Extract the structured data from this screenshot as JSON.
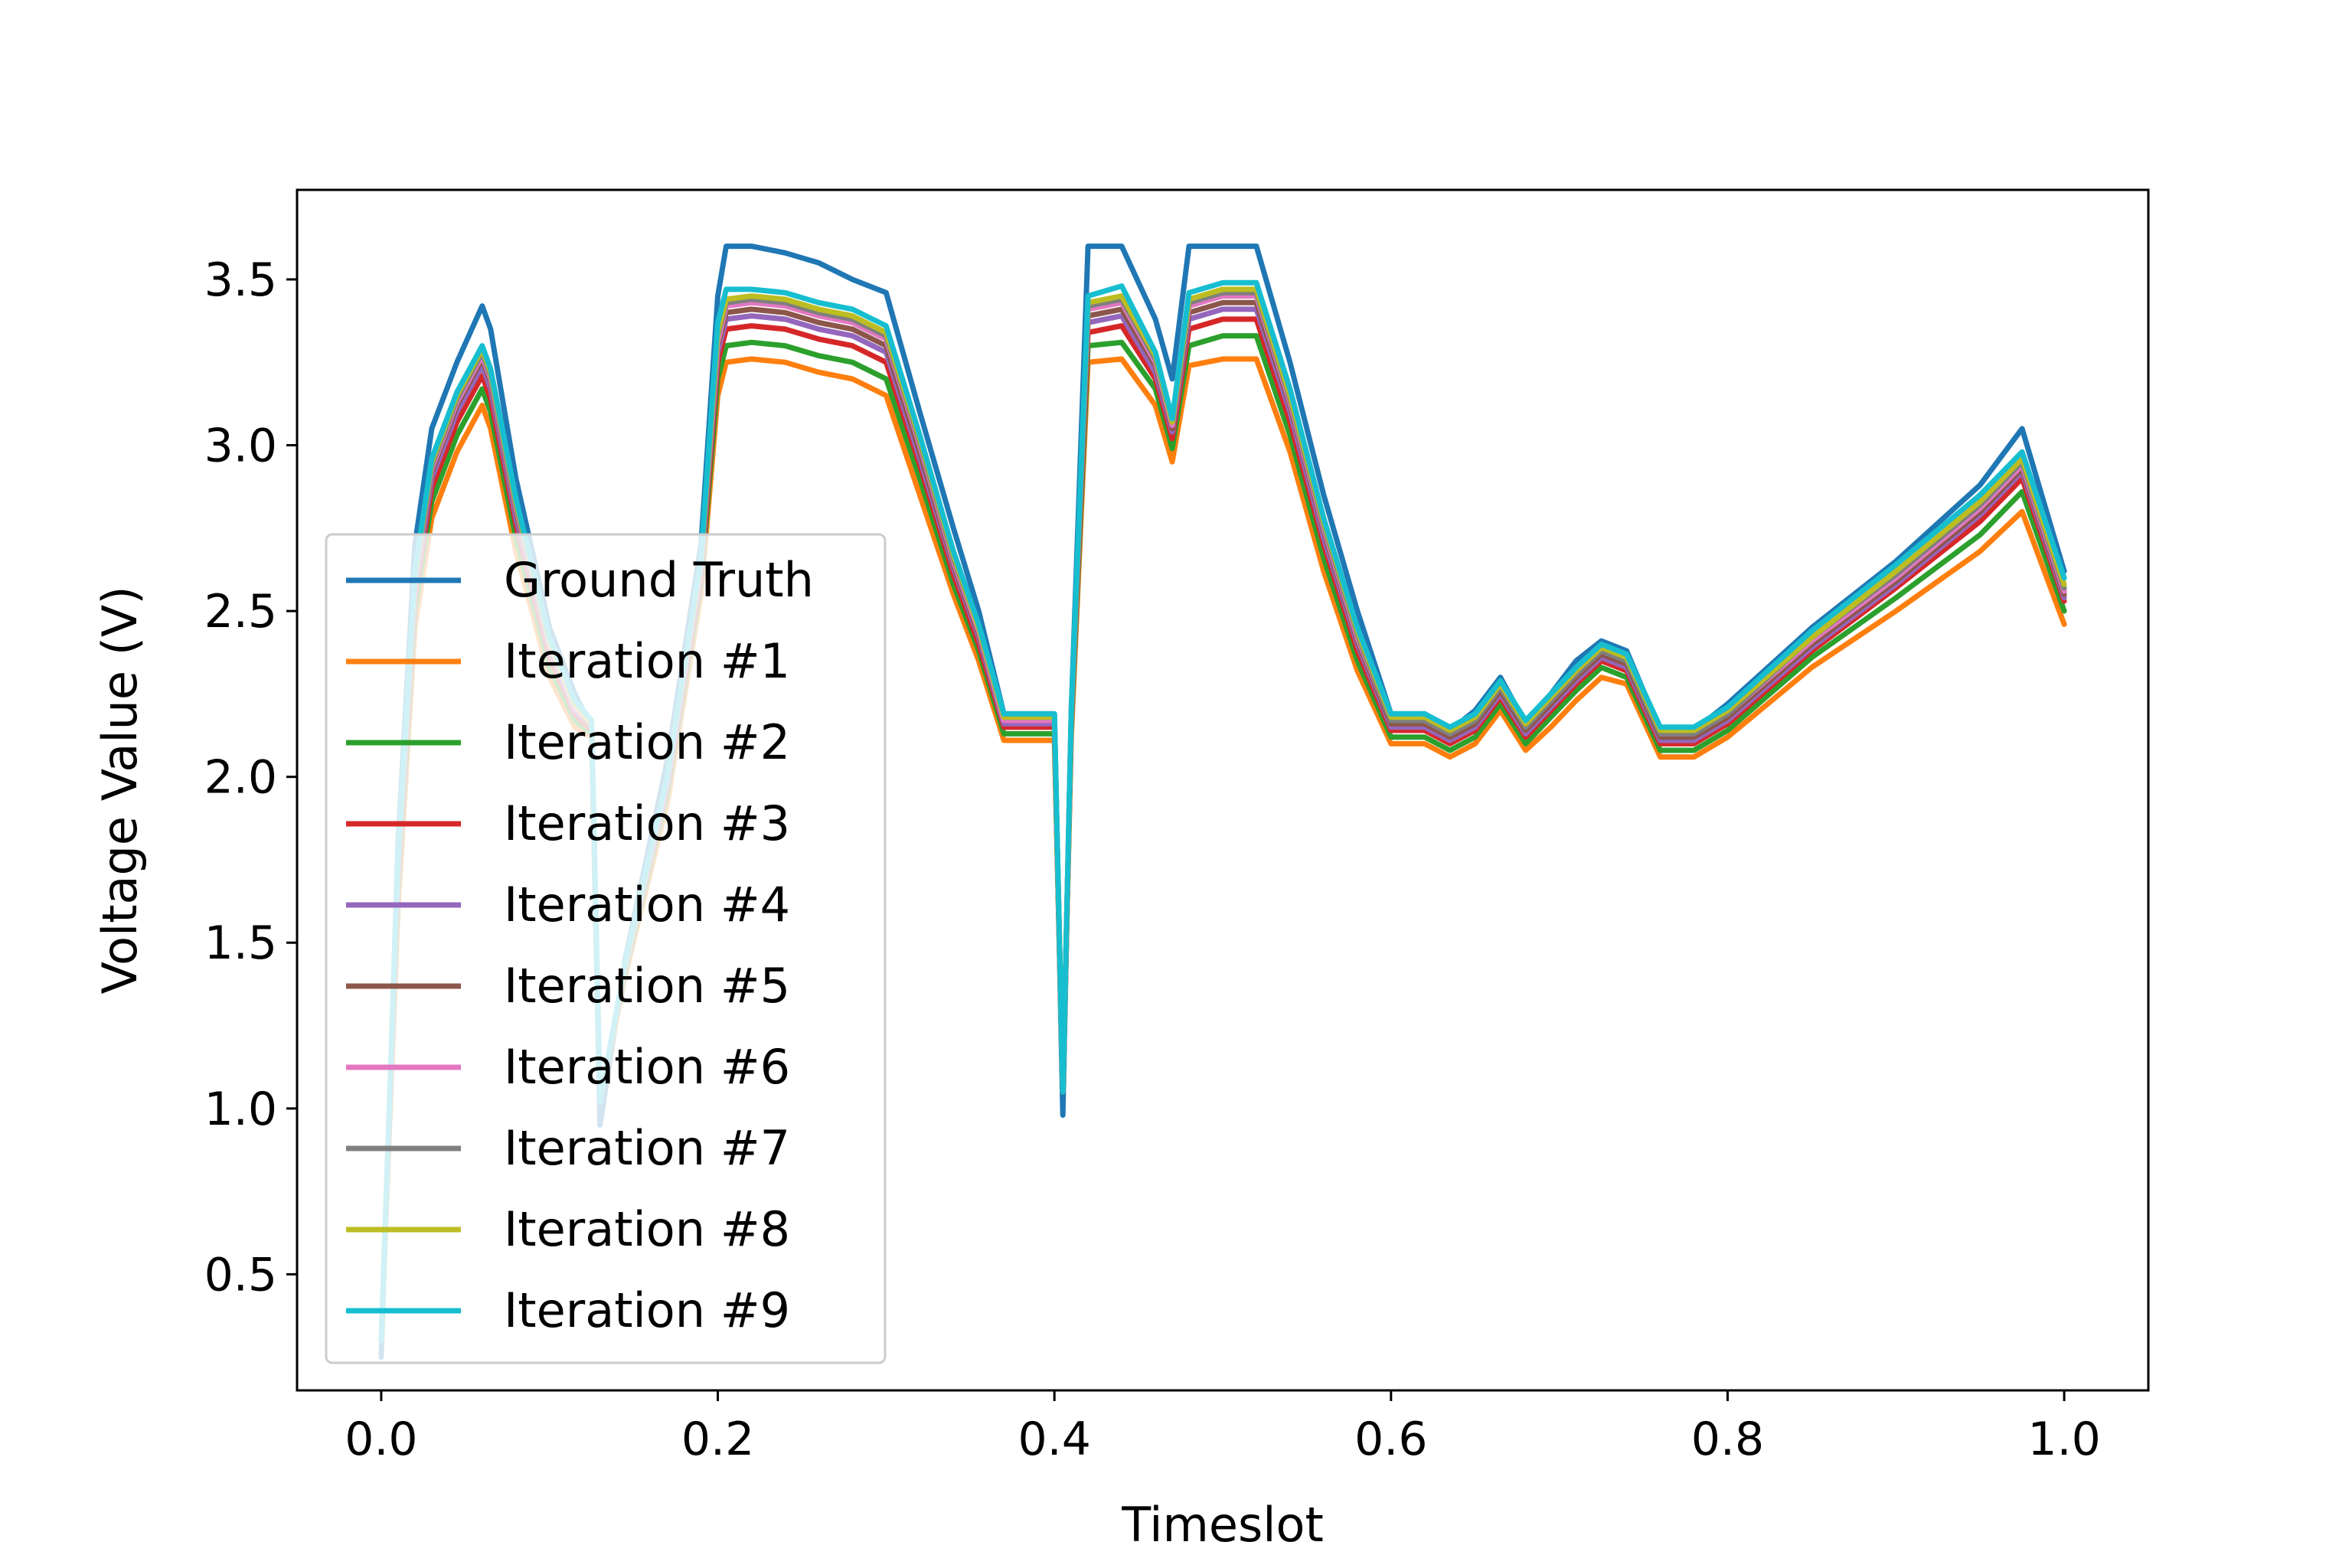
{
  "chart_data": {
    "type": "line",
    "title": "",
    "xlabel": "Timeslot",
    "ylabel": "Voltage Value (V)",
    "xlim": [
      -0.05,
      1.05
    ],
    "ylim": [
      0.15,
      3.77
    ],
    "xticks": [
      0.0,
      0.2,
      0.4,
      0.6,
      0.8,
      1.0
    ],
    "xtick_labels": [
      "0.0",
      "0.2",
      "0.4",
      "0.6",
      "0.8",
      "1.0"
    ],
    "yticks": [
      0.5,
      1.0,
      1.5,
      2.0,
      2.5,
      3.0,
      3.5
    ],
    "ytick_labels": [
      "0.5",
      "1.0",
      "1.5",
      "2.0",
      "2.5",
      "3.0",
      "3.5"
    ],
    "grid": false,
    "legend_position": "lower-left",
    "x": [
      0.0,
      0.01,
      0.02,
      0.03,
      0.045,
      0.06,
      0.065,
      0.08,
      0.1,
      0.115,
      0.125,
      0.13,
      0.145,
      0.17,
      0.19,
      0.2,
      0.205,
      0.22,
      0.24,
      0.26,
      0.28,
      0.3,
      0.32,
      0.34,
      0.355,
      0.37,
      0.4,
      0.405,
      0.41,
      0.42,
      0.44,
      0.46,
      0.47,
      0.48,
      0.5,
      0.52,
      0.54,
      0.56,
      0.58,
      0.6,
      0.62,
      0.635,
      0.65,
      0.665,
      0.68,
      0.695,
      0.71,
      0.725,
      0.74,
      0.76,
      0.78,
      0.8,
      0.85,
      0.9,
      0.95,
      0.975,
      1.0
    ],
    "series": [
      {
        "name": "Ground Truth",
        "color": "#1f77b4",
        "values": [
          0.25,
          1.8,
          2.7,
          3.05,
          3.25,
          3.42,
          3.35,
          2.9,
          2.45,
          2.25,
          2.15,
          0.95,
          1.45,
          2.05,
          2.7,
          3.45,
          3.6,
          3.6,
          3.58,
          3.55,
          3.5,
          3.46,
          3.1,
          2.75,
          2.5,
          2.19,
          2.19,
          0.98,
          2.2,
          3.6,
          3.6,
          3.38,
          3.2,
          3.6,
          3.6,
          3.6,
          3.25,
          2.85,
          2.5,
          2.19,
          2.19,
          2.14,
          2.2,
          2.3,
          2.16,
          2.25,
          2.35,
          2.41,
          2.38,
          2.14,
          2.14,
          2.22,
          2.45,
          2.65,
          2.88,
          3.05,
          2.62
        ]
      },
      {
        "name": "Iteration #1",
        "color": "#ff7f0e",
        "values": [
          0.3,
          1.6,
          2.45,
          2.78,
          2.98,
          3.12,
          3.05,
          2.68,
          2.3,
          2.15,
          2.12,
          1.02,
          1.4,
          1.92,
          2.55,
          3.15,
          3.25,
          3.26,
          3.25,
          3.22,
          3.2,
          3.15,
          2.85,
          2.55,
          2.35,
          2.11,
          2.11,
          1.05,
          2.12,
          3.25,
          3.26,
          3.12,
          2.95,
          3.24,
          3.26,
          3.26,
          2.98,
          2.62,
          2.32,
          2.1,
          2.1,
          2.06,
          2.1,
          2.2,
          2.08,
          2.15,
          2.23,
          2.3,
          2.28,
          2.06,
          2.06,
          2.12,
          2.33,
          2.5,
          2.68,
          2.8,
          2.46
        ]
      },
      {
        "name": "Iteration #2",
        "color": "#2ca02c",
        "values": [
          0.3,
          1.65,
          2.5,
          2.83,
          3.03,
          3.17,
          3.1,
          2.72,
          2.33,
          2.17,
          2.13,
          1.02,
          1.41,
          1.95,
          2.58,
          3.2,
          3.3,
          3.31,
          3.3,
          3.27,
          3.25,
          3.2,
          2.9,
          2.58,
          2.38,
          2.13,
          2.13,
          1.05,
          2.14,
          3.3,
          3.31,
          3.17,
          2.99,
          3.3,
          3.33,
          3.33,
          3.03,
          2.66,
          2.35,
          2.12,
          2.12,
          2.08,
          2.12,
          2.22,
          2.1,
          2.18,
          2.26,
          2.33,
          2.3,
          2.08,
          2.08,
          2.14,
          2.36,
          2.54,
          2.73,
          2.86,
          2.5
        ]
      },
      {
        "name": "Iteration #3",
        "color": "#d62728",
        "values": [
          0.3,
          1.68,
          2.54,
          2.87,
          3.07,
          3.21,
          3.14,
          2.76,
          2.36,
          2.19,
          2.14,
          1.02,
          1.42,
          1.97,
          2.6,
          3.25,
          3.35,
          3.36,
          3.35,
          3.32,
          3.3,
          3.25,
          2.94,
          2.61,
          2.4,
          2.15,
          2.15,
          1.05,
          2.16,
          3.34,
          3.36,
          3.2,
          3.02,
          3.35,
          3.38,
          3.38,
          3.07,
          2.7,
          2.38,
          2.14,
          2.14,
          2.1,
          2.14,
          2.24,
          2.12,
          2.2,
          2.28,
          2.35,
          2.32,
          2.1,
          2.1,
          2.16,
          2.38,
          2.57,
          2.77,
          2.9,
          2.53
        ]
      },
      {
        "name": "Iteration #4",
        "color": "#9467bd",
        "values": [
          0.3,
          1.7,
          2.56,
          2.9,
          3.1,
          3.24,
          3.17,
          2.78,
          2.38,
          2.2,
          2.15,
          1.02,
          1.42,
          1.98,
          2.62,
          3.28,
          3.38,
          3.39,
          3.38,
          3.35,
          3.33,
          3.28,
          2.96,
          2.63,
          2.42,
          2.16,
          2.16,
          1.05,
          2.17,
          3.37,
          3.39,
          3.22,
          3.04,
          3.38,
          3.41,
          3.41,
          3.1,
          2.72,
          2.4,
          2.15,
          2.15,
          2.11,
          2.15,
          2.25,
          2.13,
          2.21,
          2.29,
          2.36,
          2.33,
          2.11,
          2.11,
          2.17,
          2.39,
          2.58,
          2.79,
          2.92,
          2.54
        ]
      },
      {
        "name": "Iteration #5",
        "color": "#8c564b",
        "values": [
          0.3,
          1.72,
          2.58,
          2.92,
          3.12,
          3.26,
          3.19,
          2.8,
          2.39,
          2.21,
          2.15,
          1.02,
          1.43,
          1.99,
          2.63,
          3.3,
          3.4,
          3.41,
          3.4,
          3.37,
          3.35,
          3.3,
          2.98,
          2.64,
          2.43,
          2.17,
          2.17,
          1.05,
          2.18,
          3.39,
          3.41,
          3.24,
          3.05,
          3.4,
          3.43,
          3.43,
          3.12,
          2.74,
          2.41,
          2.16,
          2.16,
          2.12,
          2.16,
          2.26,
          2.14,
          2.22,
          2.3,
          2.37,
          2.34,
          2.12,
          2.12,
          2.18,
          2.4,
          2.59,
          2.8,
          2.93,
          2.55
        ]
      },
      {
        "name": "Iteration #6",
        "color": "#e377c2",
        "values": [
          0.3,
          1.73,
          2.59,
          2.93,
          3.13,
          3.27,
          3.2,
          2.81,
          2.4,
          2.21,
          2.16,
          1.02,
          1.43,
          1.99,
          2.64,
          3.31,
          3.42,
          3.43,
          3.42,
          3.39,
          3.37,
          3.32,
          3.0,
          2.65,
          2.44,
          2.17,
          2.17,
          1.05,
          2.18,
          3.41,
          3.43,
          3.25,
          3.06,
          3.42,
          3.45,
          3.45,
          3.13,
          2.75,
          2.42,
          2.17,
          2.17,
          2.13,
          2.17,
          2.27,
          2.15,
          2.23,
          2.31,
          2.38,
          2.35,
          2.13,
          2.13,
          2.19,
          2.41,
          2.6,
          2.81,
          2.94,
          2.56
        ]
      },
      {
        "name": "Iteration #7",
        "color": "#7f7f7f",
        "values": [
          0.3,
          1.74,
          2.6,
          2.94,
          3.14,
          3.28,
          3.21,
          2.82,
          2.41,
          2.22,
          2.16,
          1.02,
          1.43,
          2.0,
          2.65,
          3.33,
          3.43,
          3.44,
          3.43,
          3.4,
          3.38,
          3.33,
          3.01,
          2.66,
          2.45,
          2.18,
          2.18,
          1.05,
          2.19,
          3.42,
          3.44,
          3.26,
          3.07,
          3.43,
          3.46,
          3.46,
          3.14,
          2.76,
          2.43,
          2.17,
          2.17,
          2.13,
          2.17,
          2.27,
          2.15,
          2.23,
          2.31,
          2.38,
          2.35,
          2.13,
          2.13,
          2.19,
          2.42,
          2.61,
          2.82,
          2.95,
          2.57
        ]
      },
      {
        "name": "Iteration #8",
        "color": "#bcbd22",
        "values": [
          0.3,
          1.75,
          2.61,
          2.95,
          3.15,
          3.29,
          3.22,
          2.83,
          2.41,
          2.22,
          2.16,
          1.02,
          1.43,
          2.0,
          2.65,
          3.34,
          3.44,
          3.45,
          3.44,
          3.41,
          3.39,
          3.34,
          3.02,
          2.67,
          2.45,
          2.18,
          2.18,
          1.05,
          2.19,
          3.43,
          3.45,
          3.27,
          3.07,
          3.44,
          3.47,
          3.47,
          3.15,
          2.77,
          2.44,
          2.18,
          2.18,
          2.14,
          2.18,
          2.28,
          2.16,
          2.24,
          2.32,
          2.39,
          2.36,
          2.14,
          2.14,
          2.2,
          2.42,
          2.62,
          2.83,
          2.96,
          2.58
        ]
      },
      {
        "name": "Iteration #9",
        "color": "#17becf",
        "values": [
          0.3,
          1.76,
          2.62,
          2.96,
          3.16,
          3.3,
          3.23,
          2.84,
          2.42,
          2.23,
          2.17,
          1.02,
          1.44,
          2.0,
          2.66,
          3.37,
          3.47,
          3.47,
          3.46,
          3.43,
          3.41,
          3.36,
          3.03,
          2.68,
          2.46,
          2.19,
          2.19,
          1.05,
          2.2,
          3.45,
          3.48,
          3.28,
          3.08,
          3.46,
          3.49,
          3.49,
          3.17,
          2.78,
          2.45,
          2.19,
          2.19,
          2.15,
          2.19,
          2.29,
          2.17,
          2.25,
          2.33,
          2.4,
          2.37,
          2.15,
          2.15,
          2.21,
          2.44,
          2.64,
          2.85,
          2.98,
          2.6
        ]
      }
    ]
  }
}
